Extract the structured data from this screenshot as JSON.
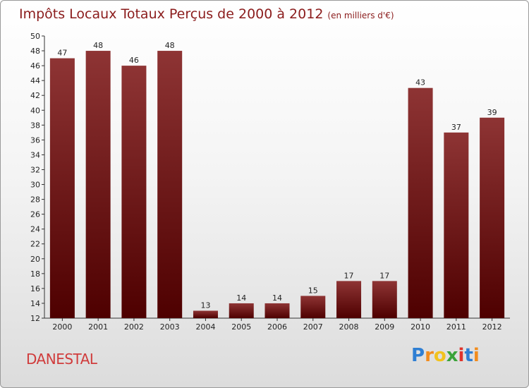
{
  "chart_data": {
    "type": "bar",
    "title": "Impôts Locaux Totaux Perçus de 2000 à 2012",
    "unit_note": "(en milliers d'€)",
    "categories": [
      "2000",
      "2001",
      "2002",
      "2003",
      "2004",
      "2005",
      "2006",
      "2007",
      "2008",
      "2009",
      "2010",
      "2011",
      "2012"
    ],
    "values": [
      47,
      48,
      46,
      48,
      13,
      14,
      14,
      15,
      17,
      17,
      43,
      37,
      39
    ],
    "ylim": [
      12,
      50
    ],
    "ytick_step": 2,
    "grid": false,
    "bar_color": "#7a1a1a"
  },
  "commune": "DANESTAL",
  "logo": {
    "letters": [
      "P",
      "r",
      "o",
      "x",
      "i",
      "t",
      "i"
    ],
    "colors": [
      "#2f7fd3",
      "#f28c1d",
      "#f2c21d",
      "#3aa33a",
      "#e0332b",
      "#2f7fd3",
      "#f28c1d"
    ]
  }
}
